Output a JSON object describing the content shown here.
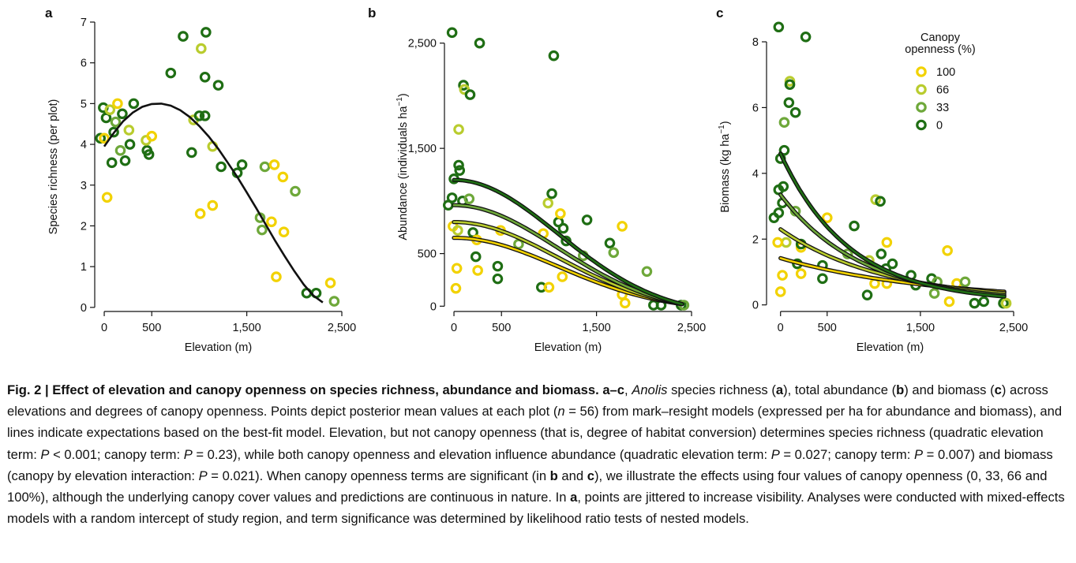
{
  "chart_data": [
    {
      "panel": "a",
      "type": "scatter",
      "xlabel": "Elevation (m)",
      "ylabel": "Species richness (per plot)",
      "xlim": [
        -100,
        2500
      ],
      "ylim": [
        -0.1,
        7.0
      ],
      "xticks": [
        "0",
        "500",
        "1,500",
        "2,500"
      ],
      "xtick_values": [
        0,
        500,
        1500,
        2500
      ],
      "yticks": [
        "0",
        "1",
        "2",
        "3",
        "4",
        "5",
        "6",
        "7"
      ],
      "ytick_values": [
        0,
        1,
        2,
        3,
        4,
        5,
        6,
        7
      ],
      "points": [
        {
          "x": -40,
          "y": 4.15,
          "c": 0
        },
        {
          "x": 0,
          "y": 4.15,
          "c": 100
        },
        {
          "x": -10,
          "y": 4.9,
          "c": 0
        },
        {
          "x": 20,
          "y": 4.65,
          "c": 0
        },
        {
          "x": 30,
          "y": 2.7,
          "c": 100
        },
        {
          "x": 60,
          "y": 4.85,
          "c": 66
        },
        {
          "x": 80,
          "y": 3.55,
          "c": 0
        },
        {
          "x": 100,
          "y": 4.3,
          "c": 0
        },
        {
          "x": 120,
          "y": 4.55,
          "c": 33
        },
        {
          "x": 140,
          "y": 5.0,
          "c": 100
        },
        {
          "x": 170,
          "y": 3.85,
          "c": 33
        },
        {
          "x": 190,
          "y": 4.75,
          "c": 0
        },
        {
          "x": 220,
          "y": 3.6,
          "c": 0
        },
        {
          "x": 260,
          "y": 4.35,
          "c": 66
        },
        {
          "x": 270,
          "y": 4.0,
          "c": 0
        },
        {
          "x": 310,
          "y": 5.0,
          "c": 0
        },
        {
          "x": 450,
          "y": 3.85,
          "c": 0
        },
        {
          "x": 470,
          "y": 3.75,
          "c": 0
        },
        {
          "x": 440,
          "y": 4.1,
          "c": 66
        },
        {
          "x": 500,
          "y": 4.2,
          "c": 100
        },
        {
          "x": 700,
          "y": 5.75,
          "c": 0
        },
        {
          "x": 830,
          "y": 6.65,
          "c": 0
        },
        {
          "x": 920,
          "y": 3.8,
          "c": 0
        },
        {
          "x": 940,
          "y": 4.6,
          "c": 66
        },
        {
          "x": 1010,
          "y": 2.3,
          "c": 100
        },
        {
          "x": 1000,
          "y": 4.7,
          "c": 0
        },
        {
          "x": 1020,
          "y": 6.35,
          "c": 66
        },
        {
          "x": 1060,
          "y": 4.7,
          "c": 0
        },
        {
          "x": 1060,
          "y": 5.65,
          "c": 0
        },
        {
          "x": 1070,
          "y": 6.75,
          "c": 0
        },
        {
          "x": 1140,
          "y": 2.5,
          "c": 100
        },
        {
          "x": 1140,
          "y": 3.95,
          "c": 66
        },
        {
          "x": 1200,
          "y": 5.45,
          "c": 0
        },
        {
          "x": 1230,
          "y": 3.45,
          "c": 0
        },
        {
          "x": 1400,
          "y": 3.3,
          "c": 0
        },
        {
          "x": 1450,
          "y": 3.5,
          "c": 0
        },
        {
          "x": 1640,
          "y": 2.2,
          "c": 33
        },
        {
          "x": 1660,
          "y": 1.9,
          "c": 33
        },
        {
          "x": 1690,
          "y": 3.45,
          "c": 33
        },
        {
          "x": 1760,
          "y": 2.1,
          "c": 100
        },
        {
          "x": 1790,
          "y": 3.5,
          "c": 100
        },
        {
          "x": 1810,
          "y": 0.75,
          "c": 100
        },
        {
          "x": 1880,
          "y": 3.2,
          "c": 100
        },
        {
          "x": 1890,
          "y": 1.85,
          "c": 100
        },
        {
          "x": 2010,
          "y": 2.85,
          "c": 33
        },
        {
          "x": 2130,
          "y": 0.35,
          "c": 0
        },
        {
          "x": 2230,
          "y": 0.35,
          "c": 0
        },
        {
          "x": 2380,
          "y": 0.6,
          "c": 100
        },
        {
          "x": 2420,
          "y": 0.15,
          "c": 33
        }
      ],
      "fit_curve": {
        "x": [
          0,
          100,
          200,
          300,
          400,
          500,
          600,
          700,
          800,
          900,
          1000,
          1100,
          1200,
          1300,
          1400,
          1500,
          1600,
          1700,
          1800,
          1900,
          2000,
          2100,
          2200,
          2300
        ],
        "y": [
          3.95,
          4.28,
          4.57,
          4.78,
          4.92,
          4.99,
          5.0,
          4.95,
          4.84,
          4.67,
          4.45,
          4.19,
          3.89,
          3.55,
          3.2,
          2.82,
          2.43,
          2.03,
          1.63,
          1.25,
          0.89,
          0.56,
          0.29,
          0.12
        ]
      }
    },
    {
      "panel": "b",
      "type": "scatter",
      "xlabel": "Elevation (m)",
      "ylabel": "Abundance (individuals ha",
      "ylabel_sup": "−1",
      "ylabel_close": ")",
      "xlim": [
        -100,
        2500
      ],
      "ylim": [
        -50,
        2700
      ],
      "xticks": [
        "0",
        "500",
        "1,500",
        "2,500"
      ],
      "xtick_values": [
        0,
        500,
        1500,
        2500
      ],
      "yticks": [
        "0",
        "500",
        "1,500",
        "2,500"
      ],
      "ytick_values": [
        0,
        500,
        1500,
        2500
      ],
      "points": [
        {
          "x": -20,
          "y": 2600,
          "c": 0
        },
        {
          "x": 270,
          "y": 2500,
          "c": 0
        },
        {
          "x": 1050,
          "y": 2380,
          "c": 0
        },
        {
          "x": 100,
          "y": 2100,
          "c": 0
        },
        {
          "x": 110,
          "y": 2060,
          "c": 66
        },
        {
          "x": 170,
          "y": 2010,
          "c": 0
        },
        {
          "x": 50,
          "y": 1680,
          "c": 66
        },
        {
          "x": 50,
          "y": 1340,
          "c": 0
        },
        {
          "x": 60,
          "y": 1290,
          "c": 0
        },
        {
          "x": 0,
          "y": 1210,
          "c": 0
        },
        {
          "x": -20,
          "y": 1030,
          "c": 0
        },
        {
          "x": -60,
          "y": 960,
          "c": 0
        },
        {
          "x": 90,
          "y": 1000,
          "c": 0
        },
        {
          "x": 160,
          "y": 1020,
          "c": 33
        },
        {
          "x": -10,
          "y": 760,
          "c": 100
        },
        {
          "x": 40,
          "y": 720,
          "c": 66
        },
        {
          "x": 200,
          "y": 700,
          "c": 0
        },
        {
          "x": 240,
          "y": 630,
          "c": 100
        },
        {
          "x": 230,
          "y": 470,
          "c": 0
        },
        {
          "x": 30,
          "y": 360,
          "c": 100
        },
        {
          "x": 20,
          "y": 170,
          "c": 100
        },
        {
          "x": 250,
          "y": 340,
          "c": 100
        },
        {
          "x": 460,
          "y": 380,
          "c": 0
        },
        {
          "x": 460,
          "y": 260,
          "c": 0
        },
        {
          "x": 490,
          "y": 720,
          "c": 100
        },
        {
          "x": 680,
          "y": 590,
          "c": 33
        },
        {
          "x": 920,
          "y": 180,
          "c": 0
        },
        {
          "x": 1000,
          "y": 180,
          "c": 100
        },
        {
          "x": 990,
          "y": 980,
          "c": 66
        },
        {
          "x": 1030,
          "y": 1070,
          "c": 0
        },
        {
          "x": 940,
          "y": 690,
          "c": 100
        },
        {
          "x": 1100,
          "y": 800,
          "c": 0
        },
        {
          "x": 1120,
          "y": 880,
          "c": 100
        },
        {
          "x": 1150,
          "y": 740,
          "c": 0
        },
        {
          "x": 1180,
          "y": 620,
          "c": 0
        },
        {
          "x": 1140,
          "y": 280,
          "c": 100
        },
        {
          "x": 1360,
          "y": 480,
          "c": 33
        },
        {
          "x": 1400,
          "y": 820,
          "c": 0
        },
        {
          "x": 1640,
          "y": 600,
          "c": 0
        },
        {
          "x": 1680,
          "y": 510,
          "c": 33
        },
        {
          "x": 1770,
          "y": 110,
          "c": 100
        },
        {
          "x": 1770,
          "y": 760,
          "c": 100
        },
        {
          "x": 1800,
          "y": 30,
          "c": 100
        },
        {
          "x": 2030,
          "y": 330,
          "c": 33
        },
        {
          "x": 2100,
          "y": 10,
          "c": 0
        },
        {
          "x": 2180,
          "y": 10,
          "c": 0
        },
        {
          "x": 2390,
          "y": 10,
          "c": 0
        },
        {
          "x": 2420,
          "y": 10,
          "c": 33
        }
      ]
    },
    {
      "panel": "c",
      "type": "scatter",
      "xlabel": "Elevation (m)",
      "ylabel": "Biomass (kg ha",
      "ylabel_sup": "−1",
      "ylabel_close": ")",
      "xlim": [
        -150,
        2500
      ],
      "ylim": [
        -0.2,
        8.6
      ],
      "xticks": [
        "0",
        "500",
        "1,500",
        "2,500"
      ],
      "xtick_values": [
        0,
        500,
        1500,
        2500
      ],
      "yticks": [
        "0",
        "2",
        "4",
        "6",
        "8"
      ],
      "ytick_values": [
        0,
        2,
        4,
        6,
        8
      ],
      "legend": {
        "title_line1": "Canopy",
        "title_line2": "openness (%)",
        "labels": [
          "100",
          "66",
          "33",
          "0"
        ],
        "placement": "top-right"
      },
      "points": [
        {
          "x": -20,
          "y": 8.45,
          "c": 0
        },
        {
          "x": 270,
          "y": 8.15,
          "c": 0
        },
        {
          "x": 100,
          "y": 6.8,
          "c": 66
        },
        {
          "x": 100,
          "y": 6.7,
          "c": 0
        },
        {
          "x": 90,
          "y": 6.15,
          "c": 0
        },
        {
          "x": 160,
          "y": 5.85,
          "c": 0
        },
        {
          "x": 40,
          "y": 5.55,
          "c": 33
        },
        {
          "x": 40,
          "y": 4.7,
          "c": 0
        },
        {
          "x": 0,
          "y": 4.45,
          "c": 0
        },
        {
          "x": 30,
          "y": 3.6,
          "c": 0
        },
        {
          "x": -20,
          "y": 3.5,
          "c": 0
        },
        {
          "x": 20,
          "y": 3.1,
          "c": 0
        },
        {
          "x": -20,
          "y": 2.8,
          "c": 0
        },
        {
          "x": -70,
          "y": 2.65,
          "c": 0
        },
        {
          "x": 160,
          "y": 2.85,
          "c": 33
        },
        {
          "x": 60,
          "y": 1.9,
          "c": 66
        },
        {
          "x": -30,
          "y": 1.9,
          "c": 100
        },
        {
          "x": 220,
          "y": 1.75,
          "c": 100
        },
        {
          "x": 220,
          "y": 1.85,
          "c": 0
        },
        {
          "x": 180,
          "y": 1.25,
          "c": 0
        },
        {
          "x": 20,
          "y": 0.9,
          "c": 100
        },
        {
          "x": 0,
          "y": 0.4,
          "c": 100
        },
        {
          "x": 220,
          "y": 0.95,
          "c": 100
        },
        {
          "x": 450,
          "y": 1.2,
          "c": 0
        },
        {
          "x": 450,
          "y": 0.8,
          "c": 0
        },
        {
          "x": 500,
          "y": 2.65,
          "c": 100
        },
        {
          "x": 720,
          "y": 1.55,
          "c": 33
        },
        {
          "x": 790,
          "y": 2.4,
          "c": 0
        },
        {
          "x": 930,
          "y": 0.3,
          "c": 0
        },
        {
          "x": 950,
          "y": 1.35,
          "c": 66
        },
        {
          "x": 1010,
          "y": 0.65,
          "c": 100
        },
        {
          "x": 1020,
          "y": 3.2,
          "c": 66
        },
        {
          "x": 1070,
          "y": 3.15,
          "c": 0
        },
        {
          "x": 1080,
          "y": 1.55,
          "c": 0
        },
        {
          "x": 1140,
          "y": 1.9,
          "c": 100
        },
        {
          "x": 1130,
          "y": 1.1,
          "c": 0
        },
        {
          "x": 1140,
          "y": 0.65,
          "c": 100
        },
        {
          "x": 1200,
          "y": 1.25,
          "c": 0
        },
        {
          "x": 1400,
          "y": 0.9,
          "c": 0
        },
        {
          "x": 1450,
          "y": 0.6,
          "c": 0
        },
        {
          "x": 1620,
          "y": 0.8,
          "c": 0
        },
        {
          "x": 1650,
          "y": 0.35,
          "c": 33
        },
        {
          "x": 1680,
          "y": 0.7,
          "c": 33
        },
        {
          "x": 1790,
          "y": 1.65,
          "c": 100
        },
        {
          "x": 1810,
          "y": 0.1,
          "c": 100
        },
        {
          "x": 1890,
          "y": 0.65,
          "c": 100
        },
        {
          "x": 1980,
          "y": 0.7,
          "c": 33
        },
        {
          "x": 2080,
          "y": 0.05,
          "c": 0
        },
        {
          "x": 2180,
          "y": 0.1,
          "c": 0
        },
        {
          "x": 2390,
          "y": 0.05,
          "c": 0
        },
        {
          "x": 2420,
          "y": 0.05,
          "c": 66
        }
      ]
    }
  ],
  "canopy_colors": {
    "100": "#f2d200",
    "66": "#b9cc2e",
    "33": "#6ea83a",
    "0": "#1f6e14"
  },
  "panel_labels": [
    "a",
    "b",
    "c"
  ],
  "caption": {
    "lead": "Fig. 2 | Effect of elevation and canopy openness on species richness, abundance and biomass. a–c",
    "parts": [
      {
        "t": "Anolis",
        "s": "i"
      },
      {
        "t": " species richness (",
        "s": ""
      },
      {
        "t": "a",
        "s": "b"
      },
      {
        "t": "), total abundance (",
        "s": ""
      },
      {
        "t": "b",
        "s": "b"
      },
      {
        "t": ") and biomass (",
        "s": ""
      },
      {
        "t": "c",
        "s": "b"
      },
      {
        "t": ") across elevations and degrees of canopy openness. Points depict posterior mean values at each plot (",
        "s": ""
      },
      {
        "t": "n",
        "s": "i"
      },
      {
        "t": " = 56) from mark–resight models (expressed per ha for abundance and biomass), and lines indicate expectations based on the best-fit model. Elevation, but not canopy openness (that is, degree of habitat conversion) determines species richness (quadratic elevation term: ",
        "s": ""
      },
      {
        "t": "P",
        "s": "i"
      },
      {
        "t": " < 0.001; canopy term: ",
        "s": ""
      },
      {
        "t": "P",
        "s": "i"
      },
      {
        "t": " = 0.23), while both canopy openness and elevation influence abundance (quadratic elevation term: ",
        "s": ""
      },
      {
        "t": "P",
        "s": "i"
      },
      {
        "t": " = 0.027; canopy term: ",
        "s": ""
      },
      {
        "t": "P",
        "s": "i"
      },
      {
        "t": " = 0.007) and biomass (canopy by elevation interaction: ",
        "s": ""
      },
      {
        "t": "P",
        "s": "i"
      },
      {
        "t": " = 0.021). When canopy openness terms are significant (in ",
        "s": ""
      },
      {
        "t": "b",
        "s": "b"
      },
      {
        "t": " and ",
        "s": ""
      },
      {
        "t": "c",
        "s": "b"
      },
      {
        "t": "), we illustrate the effects using four values of canopy openness (0, 33, 66 and 100%), although the underlying canopy cover values and predictions are continuous in nature. In ",
        "s": ""
      },
      {
        "t": "a",
        "s": "b"
      },
      {
        "t": ", points are jittered to increase visibility. Analyses were conducted with mixed-effects models with a random intercept of study region, and term significance was determined by likelihood ratio tests of nested models.",
        "s": ""
      }
    ]
  }
}
